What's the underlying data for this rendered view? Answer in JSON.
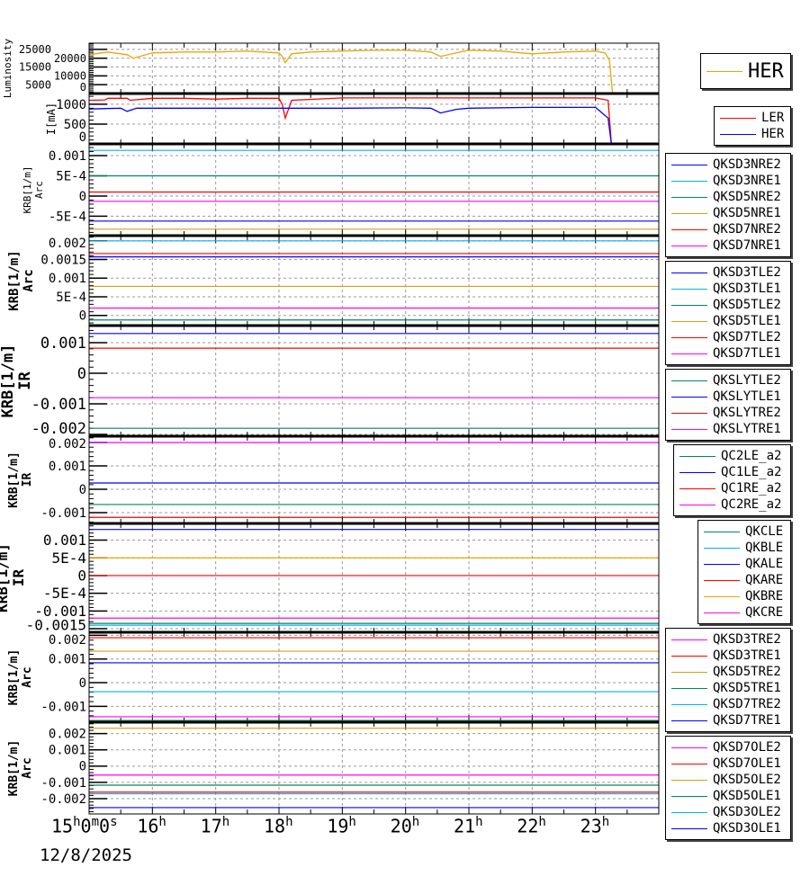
{
  "colors": {
    "blue": "#0000ff",
    "cyan": "#00b4f0",
    "green": "#00875a",
    "gold": "#d4a017",
    "orange": "#e8a800",
    "red": "#ff0000",
    "magenta": "#ff00ff"
  },
  "x_axis": {
    "range_hours": [
      15,
      24
    ],
    "tick_labels": [
      {
        "h": 15,
        "parts": [
          "15",
          "h",
          "0",
          "m",
          "0",
          "s"
        ]
      },
      {
        "h": 16,
        "parts": [
          "16",
          "h"
        ]
      },
      {
        "h": 17,
        "parts": [
          "17",
          "h"
        ]
      },
      {
        "h": 18,
        "parts": [
          "18",
          "h"
        ]
      },
      {
        "h": 19,
        "parts": [
          "19",
          "h"
        ]
      },
      {
        "h": 20,
        "parts": [
          "20",
          "h"
        ]
      },
      {
        "h": 21,
        "parts": [
          "21",
          "h"
        ]
      },
      {
        "h": 22,
        "parts": [
          "22",
          "h"
        ]
      },
      {
        "h": 23,
        "parts": [
          "23",
          "h"
        ]
      }
    ],
    "date": "12/8/2025"
  },
  "chart_data": [
    {
      "type": "line",
      "ylabel": [
        "Luminosity"
      ],
      "ylim": [
        0,
        28500
      ],
      "grid": true,
      "yticks": [
        {
          "v": 0,
          "t": "0"
        },
        {
          "v": 5000,
          "t": "5000"
        },
        {
          "v": 10000,
          "t": "10000"
        },
        {
          "v": 15000,
          "t": "15000"
        },
        {
          "v": 20000,
          "t": "20000"
        },
        {
          "v": 25000,
          "t": "25000"
        }
      ],
      "legend": {
        "big": true,
        "items": [
          {
            "name": "HER",
            "color": "orange"
          }
        ]
      },
      "series": [
        {
          "name": "HER",
          "color": "orange",
          "x": [
            15,
            15.3,
            15.6,
            15.7,
            16,
            16.5,
            17,
            17.5,
            18,
            18.05,
            18.1,
            18.2,
            18.5,
            19,
            19.5,
            20,
            20.4,
            20.55,
            20.8,
            21,
            21.5,
            22,
            22.5,
            23,
            23.15,
            23.22,
            23.27,
            24
          ],
          "y": [
            22000,
            23500,
            22000,
            20000,
            23000,
            23500,
            23500,
            24000,
            23000,
            21000,
            17500,
            22500,
            23500,
            24000,
            24500,
            24500,
            23500,
            21000,
            23000,
            24500,
            24000,
            22500,
            23500,
            24000,
            23000,
            19000,
            0,
            0
          ]
        }
      ]
    },
    {
      "type": "line",
      "ylabel": [
        "I[mA]"
      ],
      "ylim": [
        0,
        1270
      ],
      "grid": true,
      "yticks": [
        {
          "v": 0,
          "t": "0"
        },
        {
          "v": 500,
          "t": "500"
        },
        {
          "v": 1000,
          "t": "1000"
        }
      ],
      "legend": {
        "items": [
          {
            "name": "LER",
            "color": "red"
          },
          {
            "name": "HER",
            "color": "blue"
          }
        ]
      },
      "series": [
        {
          "name": "LER",
          "color": "red",
          "x": [
            15,
            15.25,
            15.3,
            15.6,
            15.65,
            16,
            16.5,
            17,
            17.5,
            18,
            18.05,
            18.1,
            18.2,
            19,
            20,
            21,
            22,
            23,
            23.2,
            23.25,
            24
          ],
          "y": [
            1100,
            1110,
            1150,
            1150,
            1100,
            1150,
            1150,
            1130,
            1150,
            1150,
            1000,
            650,
            1100,
            1160,
            1160,
            1160,
            1160,
            1160,
            1100,
            0,
            0
          ]
        },
        {
          "name": "HER",
          "color": "blue",
          "x": [
            15,
            15.5,
            15.6,
            15.75,
            16,
            17,
            18,
            19,
            20,
            20.4,
            20.55,
            20.8,
            21,
            22,
            23,
            23.2,
            23.25,
            24
          ],
          "y": [
            880,
            900,
            820,
            900,
            900,
            900,
            900,
            900,
            910,
            900,
            780,
            870,
            900,
            920,
            920,
            650,
            0,
            0
          ]
        }
      ]
    },
    {
      "type": "line",
      "ylabel": [
        "KRB[1/m]",
        "Arc"
      ],
      "ylim": [
        -0.00098,
        0.00129
      ],
      "grid": true,
      "yticks": [
        {
          "v": -0.0005,
          "t": "-5E-4"
        },
        {
          "v": 0,
          "t": "0"
        },
        {
          "v": 0.0005,
          "t": "5E-4"
        },
        {
          "v": 0.001,
          "t": "0.001"
        }
      ],
      "legend": {
        "items": [
          {
            "name": "QKSD3NRE2",
            "color": "blue"
          },
          {
            "name": "QKSD3NRE1",
            "color": "cyan"
          },
          {
            "name": "QKSD5NRE2",
            "color": "green"
          },
          {
            "name": "QKSD5NRE1",
            "color": "gold"
          },
          {
            "name": "QKSD7NRE2",
            "color": "red"
          },
          {
            "name": "QKSD7NRE1",
            "color": "magenta"
          }
        ]
      },
      "series": [
        {
          "name": "QKSD3NRE2",
          "color": "blue",
          "value": -0.00062
        },
        {
          "name": "QKSD3NRE1",
          "color": "cyan",
          "value": 0.00113
        },
        {
          "name": "QKSD5NRE2",
          "color": "green",
          "value": 0.0005
        },
        {
          "name": "QKSD5NRE1",
          "color": "gold",
          "value": -0.00082
        },
        {
          "name": "QKSD7NRE2",
          "color": "red",
          "value": 0.0001
        },
        {
          "name": "QKSD7NRE1",
          "color": "magenta",
          "value": -0.00013
        }
      ]
    },
    {
      "type": "line",
      "ylabel": [
        "KRB[1/m]",
        "Arc"
      ],
      "ylim": [
        -0.00027,
        0.00214
      ],
      "grid": true,
      "yticks": [
        {
          "v": 0,
          "t": "0"
        },
        {
          "v": 0.0005,
          "t": "5E-4"
        },
        {
          "v": 0.001,
          "t": "0.001"
        },
        {
          "v": 0.0015,
          "t": "0.0015"
        },
        {
          "v": 0.002,
          "t": "0.002"
        }
      ],
      "legend": {
        "items": [
          {
            "name": "QKSD3TLE2",
            "color": "blue"
          },
          {
            "name": "QKSD3TLE1",
            "color": "cyan"
          },
          {
            "name": "QKSD5TLE2",
            "color": "green"
          },
          {
            "name": "QKSD5TLE1",
            "color": "gold"
          },
          {
            "name": "QKSD7TLE2",
            "color": "red"
          },
          {
            "name": "QKSD7TLE1",
            "color": "magenta"
          }
        ]
      },
      "series": [
        {
          "name": "QKSD3TLE2",
          "color": "blue",
          "value": 0.00157
        },
        {
          "name": "QKSD3TLE1",
          "color": "cyan",
          "value": 0.002
        },
        {
          "name": "QKSD5TLE2",
          "color": "green",
          "value": -0.00012
        },
        {
          "name": "QKSD5TLE1",
          "color": "gold",
          "value": 0.00078
        },
        {
          "name": "QKSD7TLE2",
          "color": "red",
          "value": 0.00166
        },
        {
          "name": "QKSD7TLE1",
          "color": "magenta",
          "value": 0.0002
        }
      ]
    },
    {
      "type": "line",
      "ylabel": [
        "KRB[1/m]",
        "IR"
      ],
      "ylim": [
        -0.00206,
        0.00156
      ],
      "grid": true,
      "yticks": [
        {
          "v": -0.002,
          "t": "-0.002"
        },
        {
          "v": -0.001,
          "t": "-0.001"
        },
        {
          "v": 0,
          "t": "0"
        },
        {
          "v": 0.001,
          "t": "0.001"
        }
      ],
      "legend": {
        "items": [
          {
            "name": "QKSLYTLE2",
            "color": "green"
          },
          {
            "name": "QKSLYTLE1",
            "color": "blue"
          },
          {
            "name": "QKSLYTRE2",
            "color": "red"
          },
          {
            "name": "QKSLYTRE1",
            "color": "magenta"
          }
        ]
      },
      "series": [
        {
          "name": "QKSLYTLE2",
          "color": "green",
          "value": -0.0018
        },
        {
          "name": "QKSLYTLE1",
          "color": "blue",
          "value": 0.0013
        },
        {
          "name": "QKSLYTRE2",
          "color": "red",
          "value": 0.00082
        },
        {
          "name": "QKSLYTRE1",
          "color": "magenta",
          "value": -0.0008
        }
      ]
    },
    {
      "type": "line",
      "ylabel": [
        "KRB[1/m]",
        "IR"
      ],
      "ylim": [
        -0.00146,
        0.00227
      ],
      "grid": true,
      "yticks": [
        {
          "v": -0.001,
          "t": "-0.001"
        },
        {
          "v": 0,
          "t": "0"
        },
        {
          "v": 0.001,
          "t": "0.001"
        },
        {
          "v": 0.002,
          "t": "0.002"
        }
      ],
      "legend": {
        "items": [
          {
            "name": "QC2LE_a2",
            "color": "green"
          },
          {
            "name": "QC1LE_a2",
            "color": "blue"
          },
          {
            "name": "QC1RE_a2",
            "color": "red"
          },
          {
            "name": "QC2RE_a2",
            "color": "magenta"
          }
        ]
      },
      "series": [
        {
          "name": "QC2LE_a2",
          "color": "green",
          "value": -0.00065
        },
        {
          "name": "QC1LE_a2",
          "color": "blue",
          "value": 0.00027
        },
        {
          "name": "QC1RE_a2",
          "color": "red",
          "value": -0.0012
        },
        {
          "name": "QC2RE_a2",
          "color": "magenta",
          "value": 0.002
        }
      ]
    },
    {
      "type": "line",
      "ylabel": [
        "KRB[1/m]",
        "IR"
      ],
      "ylim": [
        -0.0016,
        0.00147
      ],
      "grid": true,
      "yticks": [
        {
          "v": -0.0015,
          "t": "-0.0015"
        },
        {
          "v": -0.001,
          "t": "-0.001"
        },
        {
          "v": -0.0005,
          "t": "-5E-4"
        },
        {
          "v": 0,
          "t": "0"
        },
        {
          "v": 0.0005,
          "t": "5E-4"
        },
        {
          "v": 0.001,
          "t": "0.001"
        }
      ],
      "legend": {
        "items": [
          {
            "name": "QKCLE",
            "color": "green"
          },
          {
            "name": "QKBLE",
            "color": "cyan"
          },
          {
            "name": "QKALE",
            "color": "blue"
          },
          {
            "name": "QKARE",
            "color": "red"
          },
          {
            "name": "QKBRE",
            "color": "orange"
          },
          {
            "name": "QKCRE",
            "color": "magenta"
          }
        ]
      },
      "series": [
        {
          "name": "QKCLE",
          "color": "green",
          "value": -0.00135
        },
        {
          "name": "QKBLE",
          "color": "cyan",
          "value": -0.0014
        },
        {
          "name": "QKALE",
          "color": "blue",
          "value": 0.0013
        },
        {
          "name": "QKARE",
          "color": "red",
          "value": 0
        },
        {
          "name": "QKBRE",
          "color": "orange",
          "value": 0.0005
        },
        {
          "name": "QKCRE",
          "color": "magenta",
          "value": -0.0012
        }
      ]
    },
    {
      "type": "line",
      "ylabel": [
        "KRB[1/m]",
        "Arc"
      ],
      "ylim": [
        -0.00167,
        0.00213
      ],
      "grid": true,
      "yticks": [
        {
          "v": -0.001,
          "t": "-0.001"
        },
        {
          "v": 0,
          "t": "0"
        },
        {
          "v": 0.001,
          "t": "0.001"
        },
        {
          "v": 0.002,
          "t": "0.002"
        }
      ],
      "legend": {
        "items": [
          {
            "name": "QKSD3TRE2",
            "color": "magenta"
          },
          {
            "name": "QKSD3TRE1",
            "color": "red"
          },
          {
            "name": "QKSD5TRE2",
            "color": "gold"
          },
          {
            "name": "QKSD5TRE1",
            "color": "green"
          },
          {
            "name": "QKSD7TRE2",
            "color": "cyan"
          },
          {
            "name": "QKSD7TRE1",
            "color": "blue"
          }
        ]
      },
      "series": [
        {
          "name": "QKSD3TRE2",
          "color": "magenta",
          "value": -0.00144
        },
        {
          "name": "QKSD3TRE1",
          "color": "red",
          "value": 0.0019
        },
        {
          "name": "QKSD5TRE2",
          "color": "gold",
          "value": 0.00133
        },
        {
          "name": "QKSD5TRE1",
          "color": "green",
          "value": -0.0016
        },
        {
          "name": "QKSD7TRE2",
          "color": "cyan",
          "value": -0.00038
        },
        {
          "name": "QKSD7TRE1",
          "color": "blue",
          "value": 0.00084
        }
      ]
    },
    {
      "type": "line",
      "ylabel": [
        "KRB[1/m]",
        "Arc"
      ],
      "ylim": [
        -0.00294,
        0.0027
      ],
      "grid": true,
      "yticks": [
        {
          "v": -0.002,
          "t": "-0.002"
        },
        {
          "v": -0.001,
          "t": "-0.001"
        },
        {
          "v": 0,
          "t": "0"
        },
        {
          "v": 0.001,
          "t": "0.001"
        },
        {
          "v": 0.002,
          "t": "0.002"
        }
      ],
      "legend": {
        "items": [
          {
            "name": "QKSD7OLE2",
            "color": "magenta"
          },
          {
            "name": "QKSD7OLE1",
            "color": "red"
          },
          {
            "name": "QKSD5OLE2",
            "color": "gold"
          },
          {
            "name": "QKSD5OLE1",
            "color": "green"
          },
          {
            "name": "QKSD3OLE2",
            "color": "cyan"
          },
          {
            "name": "QKSD3OLE1",
            "color": "blue"
          }
        ]
      },
      "series": [
        {
          "name": "QKSD7OLE2",
          "color": "magenta",
          "value": -0.00055
        },
        {
          "name": "QKSD7OLE1",
          "color": "red",
          "value": -0.0016
        },
        {
          "name": "QKSD5OLE2",
          "color": "gold",
          "value": 0.00233
        },
        {
          "name": "QKSD5OLE1",
          "color": "green",
          "value": -0.00117
        },
        {
          "name": "QKSD3OLE2",
          "color": "cyan",
          "value": -0.0017
        },
        {
          "name": "QKSD3OLE1",
          "color": "blue",
          "value": -0.00255
        }
      ]
    }
  ]
}
